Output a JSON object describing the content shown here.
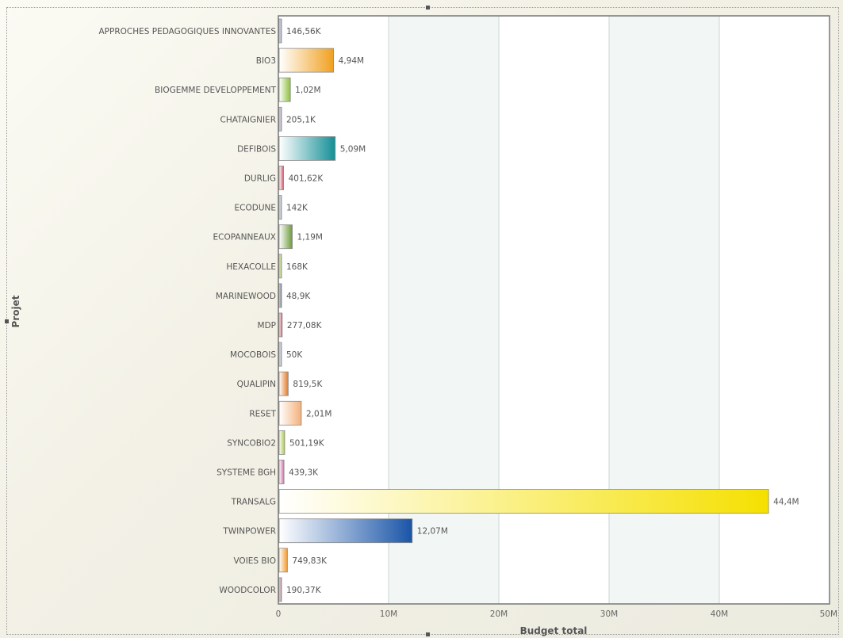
{
  "chart_data": {
    "type": "bar",
    "orientation": "horizontal",
    "xlabel": "Budget total",
    "ylabel": "Projet",
    "xlim": [
      0,
      50000000
    ],
    "x_ticks": [
      {
        "value": 0,
        "label": "0"
      },
      {
        "value": 10000000,
        "label": "10M"
      },
      {
        "value": 20000000,
        "label": "20M"
      },
      {
        "value": 30000000,
        "label": "30M"
      },
      {
        "value": 40000000,
        "label": "40M"
      },
      {
        "value": 50000000,
        "label": "50M"
      }
    ],
    "categories": [
      "APPROCHES PEDAGOGIQUES INNOVANTES",
      "BIO3",
      "BIOGEMME DEVELOPPEMENT",
      "CHATAIGNIER",
      "DEFIBOIS",
      "DURLIG",
      "ECODUNE",
      "ECOPANNEAUX",
      "HEXACOLLE",
      "MARINEWOOD",
      "MDP",
      "MOCOBOIS",
      "QUALIPIN",
      "RESET",
      "SYNCOBIO2",
      "SYSTEME BGH",
      "TRANSALG",
      "TWINPOWER",
      "VOIES BIO",
      "WOODCOLOR"
    ],
    "values": [
      146560,
      4940000,
      1020000,
      205100,
      5090000,
      401620,
      142000,
      1190000,
      168000,
      48900,
      277080,
      50000,
      819500,
      2010000,
      501190,
      439300,
      44400000,
      12070000,
      749830,
      190370
    ],
    "value_labels": [
      "146,56K",
      "4,94M",
      "1,02M",
      "205,1K",
      "5,09M",
      "401,62K",
      "142K",
      "1,19M",
      "168K",
      "48,9K",
      "277,08K",
      "50K",
      "819,5K",
      "2,01M",
      "501,19K",
      "439,3K",
      "44,4M",
      "12,07M",
      "749,83K",
      "190,37K"
    ],
    "colors": [
      "#8a8fb0",
      "#f0a020",
      "#8cbf3a",
      "#9a8fb0",
      "#138f96",
      "#d05a6a",
      "#9aa0b0",
      "#6c9a3c",
      "#98b84a",
      "#556070",
      "#c05060",
      "#9aa0b0",
      "#e07a28",
      "#f4b07a",
      "#a8c84a",
      "#d070a8",
      "#f5e000",
      "#1a55a8",
      "#f09a30",
      "#a07080"
    ],
    "grid": true,
    "legend": "none"
  }
}
